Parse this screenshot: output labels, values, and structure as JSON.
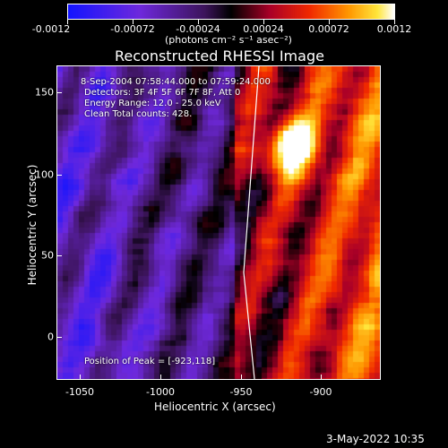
{
  "colorbar": {
    "tick_labels": [
      "-0.0012",
      "-0.00072",
      "-0.00024",
      "0.00024",
      "0.00072",
      "0.0012"
    ],
    "units": "(photons cm⁻² s⁻¹ asec⁻²)",
    "range": [
      -0.0012,
      0.0012
    ]
  },
  "title": "Reconstructed RHESSI Image",
  "info": {
    "line1": "8-Sep-2004 07:58:44.000 to 07:59:24.000",
    "line2": "Detectors: 3F 4F 5F 6F 7F 8F, Att 0",
    "line3": "Energy Range: 12.0 - 25.0 keV",
    "line4": "Clean    Total counts: 428.",
    "peak": "Position of Peak = [-923,118]"
  },
  "axes": {
    "xlabel": "Heliocentric X (arcsec)",
    "ylabel": "Heliocentric Y (arcsec)",
    "x_ticks": [
      "-1050",
      "-1000",
      "-950",
      "-900"
    ],
    "y_ticks": [
      "150",
      "100",
      "50",
      "0"
    ],
    "xlim": [
      -1075,
      -865
    ],
    "ylim": [
      -25,
      165
    ]
  },
  "footer": {
    "date": "3-May-2022 10:35"
  },
  "colors": {
    "background": "#000000",
    "foreground": "#ffffff"
  }
}
